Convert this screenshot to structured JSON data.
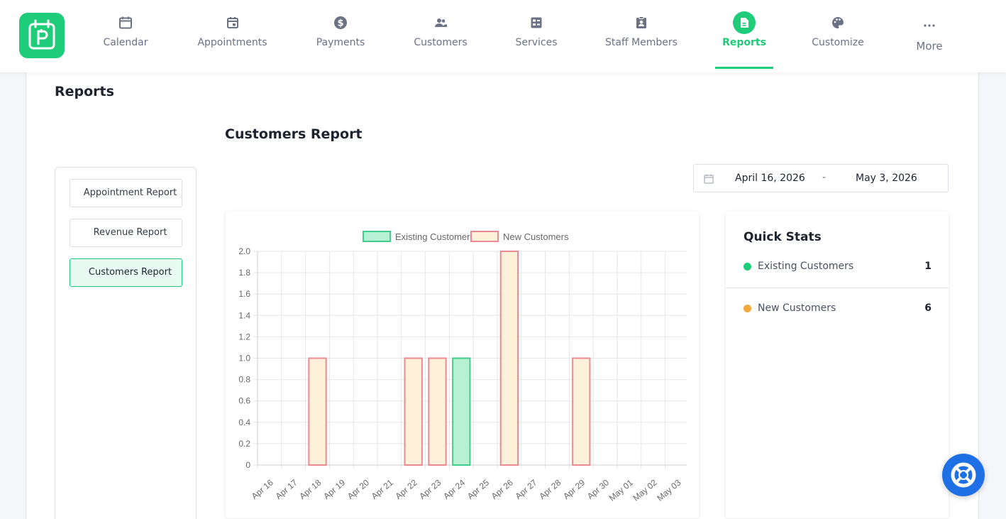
{
  "nav": {
    "items": [
      {
        "label": "Calendar",
        "icon": "calendar-icon"
      },
      {
        "label": "Appointments",
        "icon": "calendar-check-icon"
      },
      {
        "label": "Payments",
        "icon": "dollar-circle-icon"
      },
      {
        "label": "Customers",
        "icon": "people-icon"
      },
      {
        "label": "Services",
        "icon": "services-icon"
      },
      {
        "label": "Staff Members",
        "icon": "id-badge-icon"
      },
      {
        "label": "Reports",
        "icon": "report-icon"
      },
      {
        "label": "Customize",
        "icon": "palette-icon"
      },
      {
        "label": "More",
        "icon": "dots-icon"
      }
    ],
    "active": "Reports"
  },
  "page": {
    "title": "Reports",
    "section_title": "Customers Report"
  },
  "sidebar": {
    "items": [
      {
        "label": "Appointment Report"
      },
      {
        "label": "Revenue Report"
      },
      {
        "label": "Customers Report"
      }
    ],
    "active": "Customers Report"
  },
  "daterange": {
    "start": "April 16, 2026",
    "separator": "-",
    "end": "May 3, 2026"
  },
  "quick_stats": {
    "title": "Quick Stats",
    "rows": [
      {
        "name": "Existing Customers",
        "value": "1",
        "color": "#1fcc79"
      },
      {
        "name": "New Customers",
        "value": "6",
        "color": "#f0a93c"
      }
    ]
  },
  "colors": {
    "accent": "#1fcc79",
    "existing_fill": "#b8f0d4",
    "existing_stroke": "#3fcf8c",
    "new_fill": "#fdf1d9",
    "new_stroke": "#ec8a93",
    "help": "#1f6fe5"
  },
  "chart_data": {
    "type": "bar",
    "categories": [
      "Apr 16",
      "Apr 17",
      "Apr 18",
      "Apr 19",
      "Apr 20",
      "Apr 21",
      "Apr 22",
      "Apr 23",
      "Apr 24",
      "Apr 25",
      "Apr 26",
      "Apr 27",
      "Apr 28",
      "Apr 29",
      "Apr 30",
      "May 01",
      "May 02",
      "May 03"
    ],
    "series": [
      {
        "name": "Existing Customers",
        "values": [
          0,
          0,
          0,
          0,
          0,
          0,
          0,
          0,
          1,
          0,
          0,
          0,
          0,
          0,
          0,
          0,
          0,
          0
        ]
      },
      {
        "name": "New Customers",
        "values": [
          0,
          0,
          1,
          0,
          0,
          0,
          1,
          1,
          0,
          0,
          2,
          0,
          0,
          1,
          0,
          0,
          0,
          0
        ]
      }
    ],
    "yticks": [
      "0",
      "0.2",
      "0.4",
      "0.6",
      "0.8",
      "1.0",
      "1.2",
      "1.4",
      "1.6",
      "1.8",
      "2.0"
    ],
    "ylim": [
      0,
      2
    ],
    "grid": true,
    "legend": "top-center",
    "stacked": true
  }
}
